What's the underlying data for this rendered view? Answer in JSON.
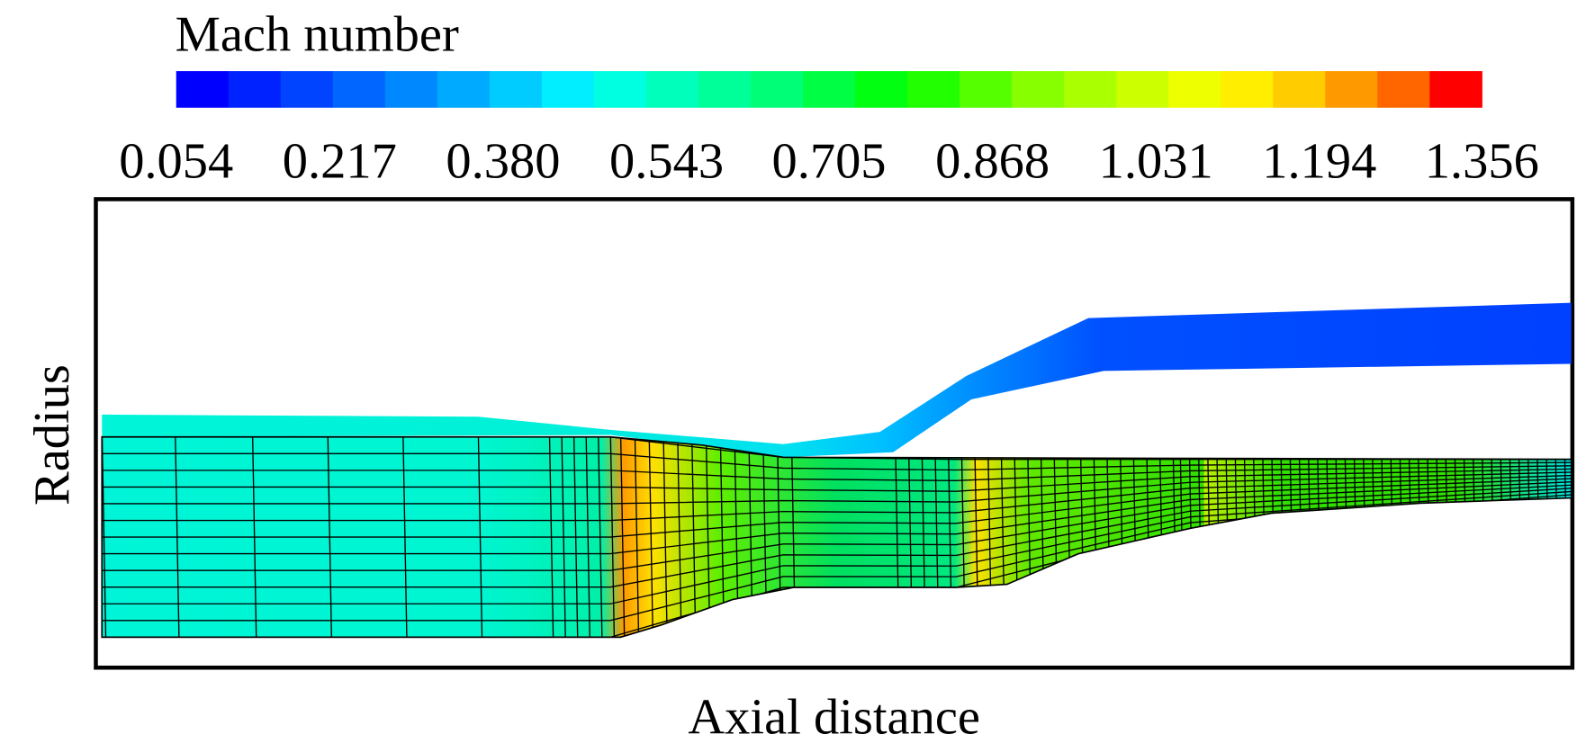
{
  "chart_data": {
    "type": "contour",
    "title": "Mach number",
    "x_label": "Axial distance",
    "y_label": "Radius",
    "clim": [
      0.054,
      1.356
    ],
    "colorbar_ticks": [
      0.054,
      0.217,
      {
        "value": 0.38,
        "label": "0.380"
      },
      0.543,
      0.705,
      0.868,
      1.031,
      1.194,
      1.356
    ],
    "colormap": [
      "#0000ff",
      "#0022ff",
      "#0044ff",
      "#0066ff",
      "#0088ff",
      "#00aaff",
      "#00ccff",
      "#00eeff",
      "#00ffe0",
      "#00ffbb",
      "#00ff99",
      "#00ff77",
      "#00ff44",
      "#00ff11",
      "#22ff00",
      "#55ff00",
      "#88ff00",
      "#aaff00",
      "#ccff00",
      "#eeff00",
      "#ffee00",
      "#ffcc00",
      "#ff9900",
      "#ff6600",
      "#ff0000"
    ]
  }
}
